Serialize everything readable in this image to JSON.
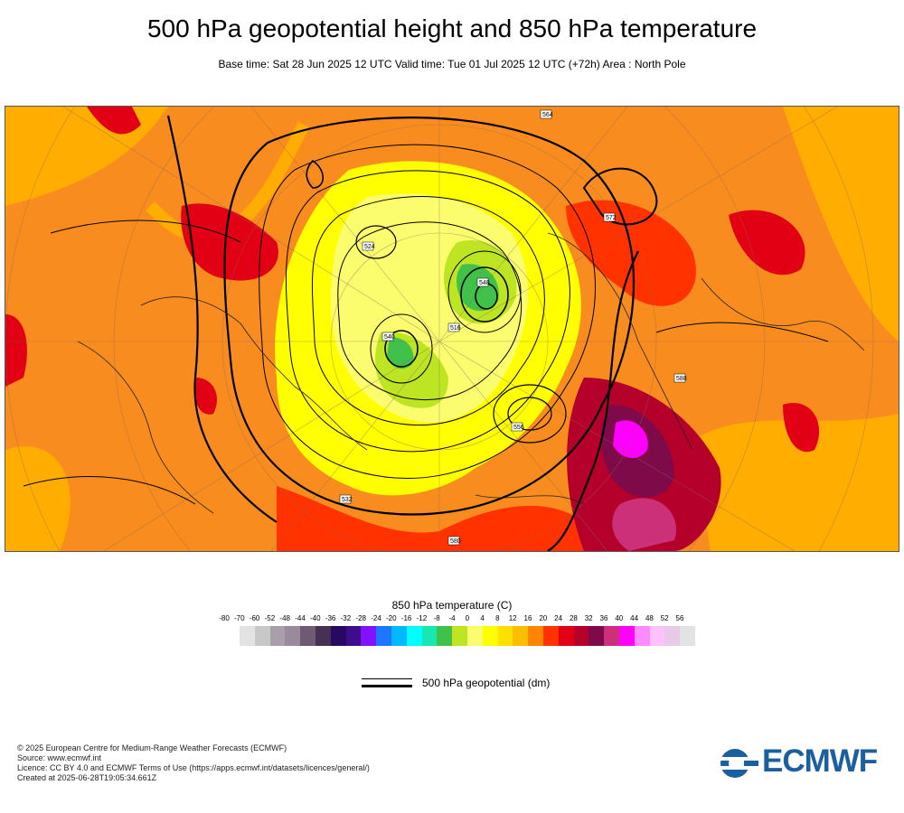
{
  "title": "500 hPa geopotential height and 850 hPa temperature",
  "subtitle": "Base time: Sat 28 Jun 2025 12 UTC Valid time: Tue 01 Jul 2025 12 UTC (+72h) Area : North Pole",
  "legend": {
    "temperature_title": "850 hPa temperature (C)",
    "ticks": [
      "-80",
      "-70",
      "-60",
      "-52",
      "-48",
      "-44",
      "-40",
      "-36",
      "-32",
      "-28",
      "-24",
      "-20",
      "-16",
      "-12",
      "-8",
      "-4",
      "0",
      "4",
      "8",
      "12",
      "16",
      "20",
      "24",
      "28",
      "32",
      "36",
      "40",
      "44",
      "48",
      "52",
      "56"
    ],
    "colors": [
      "#e3e3e3",
      "#c8c8c8",
      "#a99fab",
      "#998a9c",
      "#6e5a73",
      "#463054",
      "#290861",
      "#3d0d8a",
      "#8211ff",
      "#1e75ff",
      "#00b9ff",
      "#00ffff",
      "#18e8b0",
      "#3fc14a",
      "#bde521",
      "#fcfc6f",
      "#ffff00",
      "#fde000",
      "#fdbd00",
      "#fe8500",
      "#ff3200",
      "#e10014",
      "#b4002a",
      "#7e0a4a",
      "#cc3079",
      "#ff00ff",
      "#ff89ff",
      "#ffc2ff",
      "#e8c9e8",
      "#e3e3e3"
    ],
    "contour_label": "500 hPa geopotential (dm)"
  },
  "map": {
    "background_color": "#f88c1e",
    "contour_labels": [
      "564",
      "572",
      "540",
      "548",
      "556",
      "524",
      "516",
      "532",
      "588",
      "580"
    ]
  },
  "footer": {
    "line1": "© 2025 European Centre for Medium-Range Weather Forecasts (ECMWF)",
    "line2": "Source: www.ecmwf.int",
    "line3": "Licence: CC BY 4.0 and ECMWF Terms of Use (https://apps.ecmwf.int/datasets/licences/general/)",
    "line4": "Created at 2025-06-28T19:05:34.661Z"
  },
  "logo": {
    "text": "ECMWF",
    "icon": "ecmwf-logo-icon"
  }
}
